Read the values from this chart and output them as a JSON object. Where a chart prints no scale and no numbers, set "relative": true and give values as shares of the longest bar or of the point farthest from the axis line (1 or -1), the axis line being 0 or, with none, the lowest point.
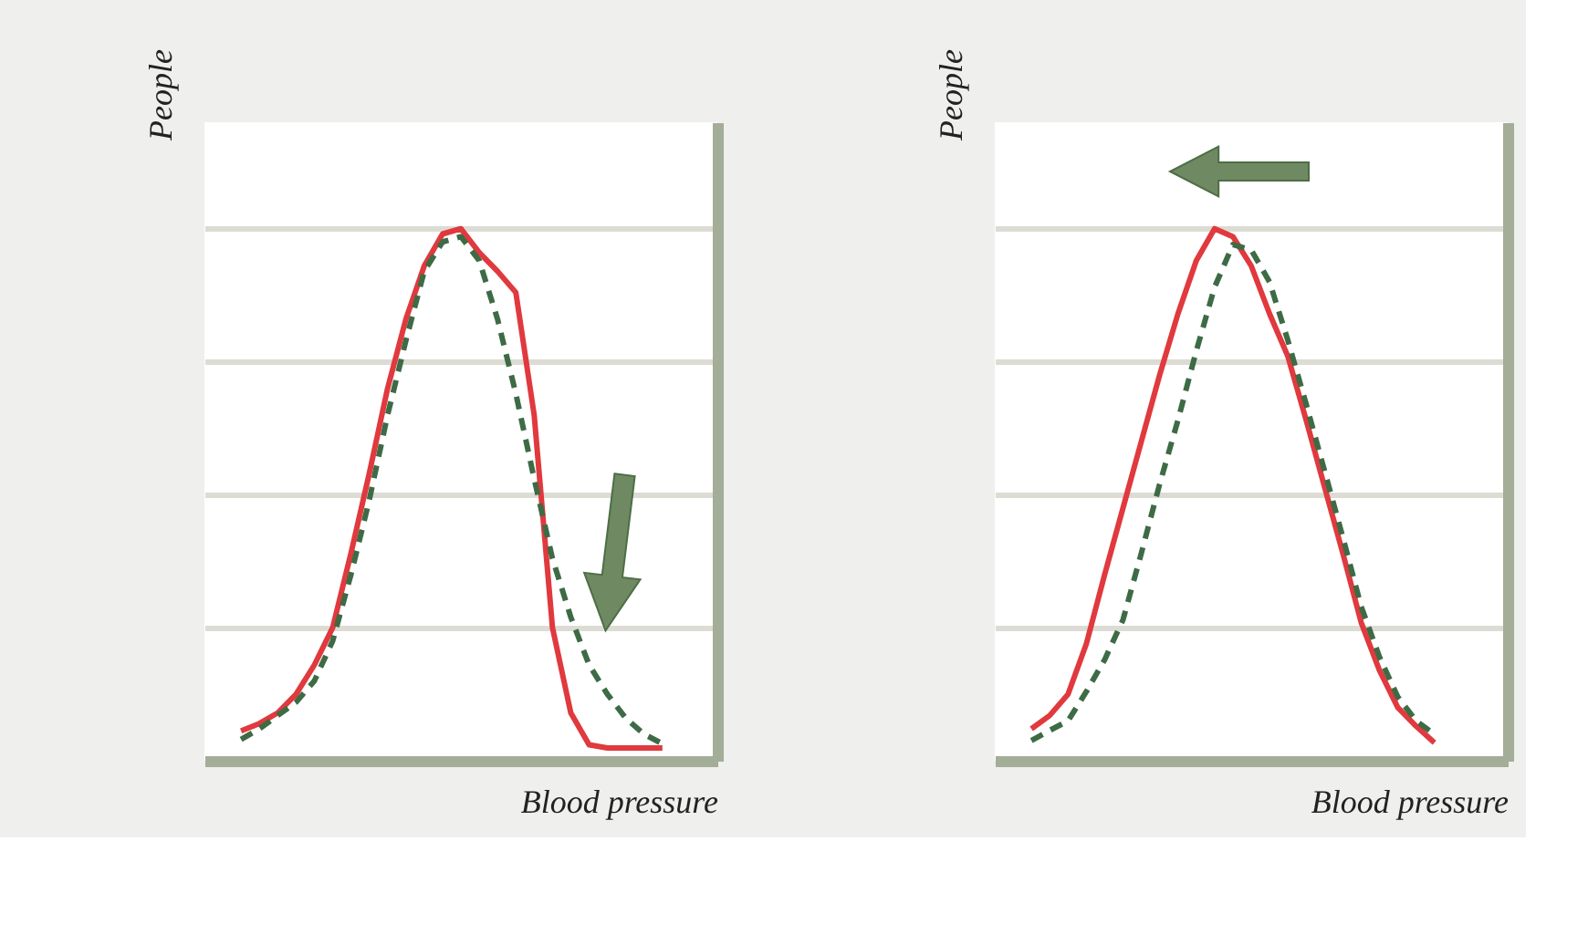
{
  "chart_data": [
    {
      "type": "line",
      "relative": true,
      "xlabel": "Blood pressure",
      "ylabel": "People",
      "grid": "y",
      "marker": "none",
      "categories": [
        null,
        null,
        null,
        null,
        null,
        null,
        null,
        null,
        null,
        null,
        null,
        null,
        null,
        null,
        null,
        null,
        null,
        null,
        null,
        null,
        null,
        null,
        null,
        null
      ],
      "series": [
        {
          "color": "#e0393e",
          "line_style": "solid",
          "values": [
            0.056,
            0.07,
            0.09,
            0.125,
            0.18,
            0.25,
            0.39,
            0.54,
            0.7,
            0.83,
            0.93,
            0.99,
            1.0,
            0.955,
            0.92,
            0.88,
            0.65,
            0.25,
            0.09,
            0.03,
            0.024,
            0.024,
            0.024,
            0.024
          ]
        },
        {
          "color": "#3d6b45",
          "line_style": "dashed",
          "values": [
            0.04,
            0.06,
            0.085,
            0.11,
            0.15,
            0.225,
            0.35,
            0.49,
            0.65,
            0.79,
            0.92,
            0.975,
            0.985,
            0.94,
            0.83,
            0.69,
            0.53,
            0.38,
            0.27,
            0.18,
            0.125,
            0.08,
            0.05,
            0.032
          ]
        }
      ]
    },
    {
      "type": "line",
      "relative": true,
      "xlabel": "Blood pressure",
      "ylabel": "People",
      "grid": "y",
      "marker": "none",
      "categories": [
        null,
        null,
        null,
        null,
        null,
        null,
        null,
        null,
        null,
        null,
        null,
        null,
        null,
        null,
        null,
        null,
        null,
        null,
        null,
        null,
        null,
        null,
        null
      ],
      "series": [
        {
          "color": "#e0393e",
          "line_style": "solid",
          "values": [
            0.06,
            0.085,
            0.125,
            0.22,
            0.35,
            0.475,
            0.6,
            0.725,
            0.84,
            0.94,
            1.0,
            0.985,
            0.93,
            0.84,
            0.76,
            0.64,
            0.515,
            0.39,
            0.26,
            0.17,
            0.1,
            0.065,
            0.034
          ]
        },
        {
          "color": "#3d6b45",
          "line_style": "dashed",
          "values": [
            0.038,
            0.057,
            0.075,
            0.13,
            0.19,
            0.265,
            0.39,
            0.52,
            0.64,
            0.77,
            0.89,
            0.97,
            0.96,
            0.9,
            0.79,
            0.67,
            0.545,
            0.42,
            0.29,
            0.195,
            0.12,
            0.075,
            0.05
          ]
        }
      ]
    }
  ]
}
